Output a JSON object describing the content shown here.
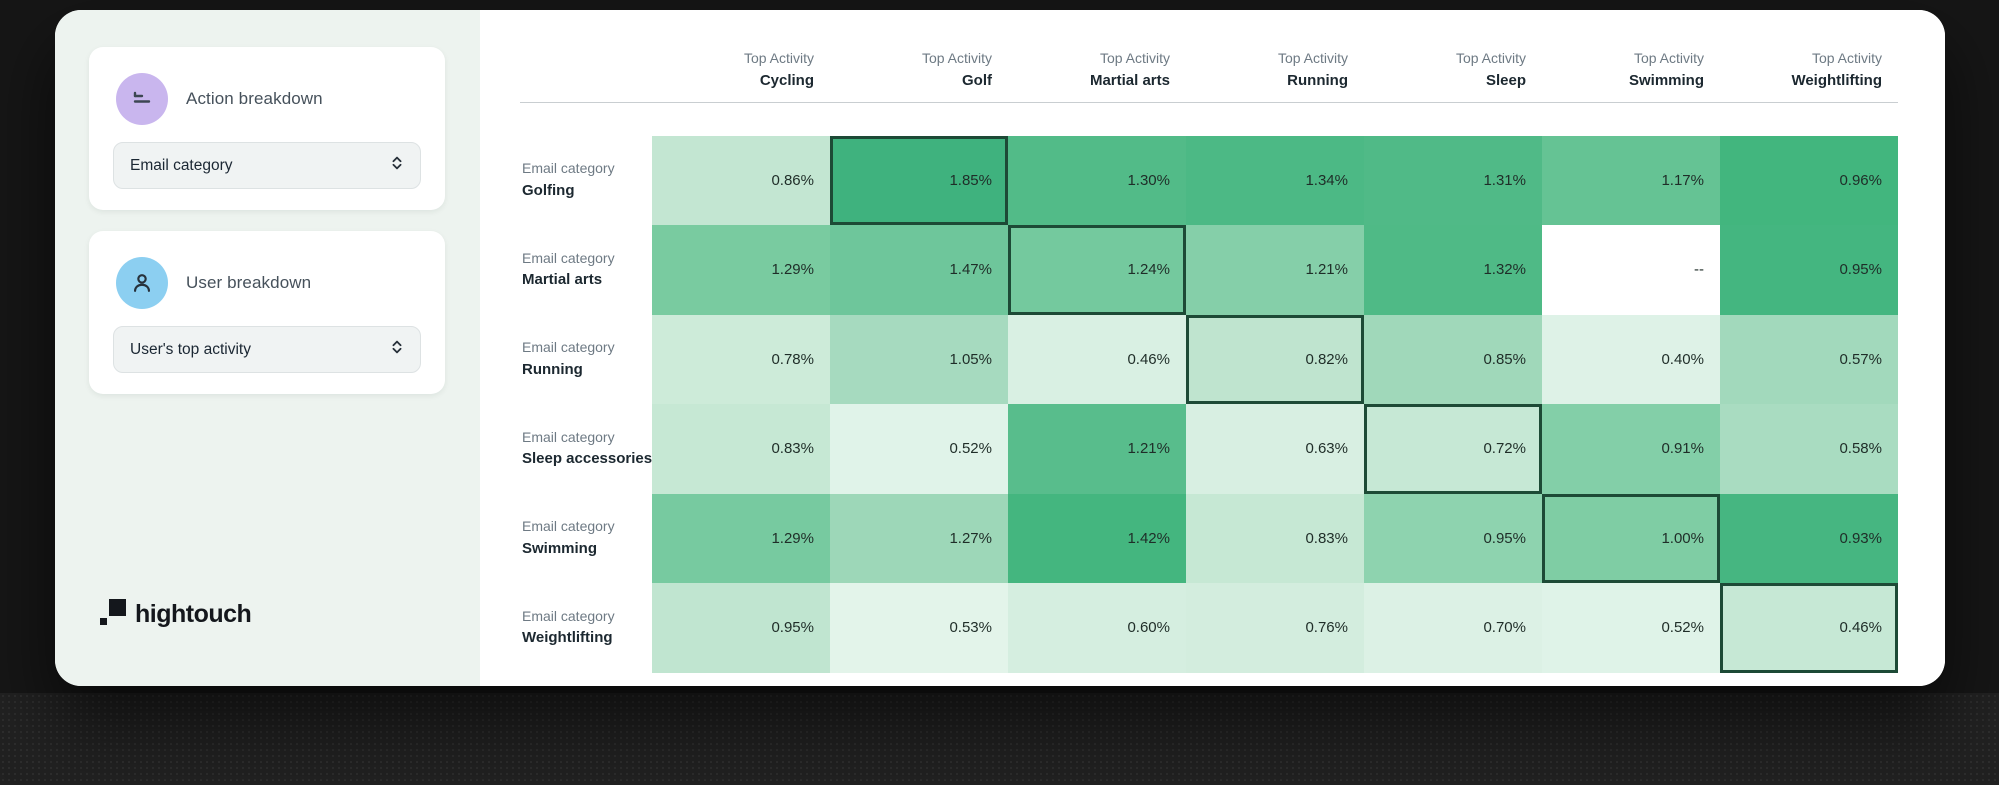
{
  "sidebar": {
    "action_card": {
      "title": "Action breakdown",
      "dropdown_value": "Email category",
      "icon": "bars-icon",
      "icon_bg": "#c9b6ee",
      "icon_stroke": "#3c4652"
    },
    "user_card": {
      "title": "User breakdown",
      "dropdown_value": "User's top activity",
      "icon": "person-icon",
      "icon_bg": "#8ccff1",
      "icon_stroke": "#27323c"
    },
    "logo_text": "hightouch",
    "logo_color": "#14171c"
  },
  "chart_data": {
    "type": "heatmap",
    "column_header_prefix": "Top Activity",
    "row_header_prefix": "Email category",
    "columns": [
      "Cycling",
      "Golf",
      "Martial arts",
      "Running",
      "Sleep",
      "Swimming",
      "Weightlifting"
    ],
    "rows": [
      "Golfing",
      "Martial arts",
      "Running",
      "Sleep accessories",
      "Swimming",
      "Weightlifting"
    ],
    "values_numeric": [
      [
        0.86,
        1.85,
        1.3,
        1.34,
        1.31,
        1.17,
        0.96
      ],
      [
        1.29,
        1.47,
        1.24,
        1.21,
        1.32,
        null,
        0.95
      ],
      [
        0.78,
        1.05,
        0.46,
        0.82,
        0.85,
        0.4,
        0.57
      ],
      [
        0.83,
        0.52,
        1.21,
        0.63,
        0.72,
        0.91,
        0.58
      ],
      [
        1.29,
        1.27,
        1.42,
        0.83,
        0.95,
        1.0,
        0.93
      ],
      [
        0.95,
        0.53,
        0.6,
        0.76,
        0.7,
        0.52,
        0.46
      ]
    ],
    "values_display": [
      [
        "0.86%",
        "1.85%",
        "1.30%",
        "1.34%",
        "1.31%",
        "1.17%",
        "0.96%"
      ],
      [
        "1.29%",
        "1.47%",
        "1.24%",
        "1.21%",
        "1.32%",
        "--",
        "0.95%"
      ],
      [
        "0.78%",
        "1.05%",
        "0.46%",
        "0.82%",
        "0.85%",
        "0.40%",
        "0.57%"
      ],
      [
        "0.83%",
        "0.52%",
        "1.21%",
        "0.63%",
        "0.72%",
        "0.91%",
        "0.58%"
      ],
      [
        "1.29%",
        "1.27%",
        "1.42%",
        "0.83%",
        "0.95%",
        "1.00%",
        "0.93%"
      ],
      [
        "0.95%",
        "0.53%",
        "0.60%",
        "0.76%",
        "0.70%",
        "0.52%",
        "0.46%"
      ]
    ],
    "cell_colors": [
      [
        "#c3e6d2",
        "#3fb27e",
        "#52bb88",
        "#4cb985",
        "#50ba87",
        "#65c394",
        "#42b67e"
      ],
      [
        "#79cba0",
        "#6ec69b",
        "#74c99e",
        "#85cfa9",
        "#4fba86",
        "#ffffff",
        "#44b680"
      ],
      [
        "#cdebd9",
        "#a6dabf",
        "#d9f0e3",
        "#bfe4cf",
        "#a0d8ba",
        "#def2e7",
        "#a2d9bc"
      ],
      [
        "#c6e8d4",
        "#e0f3e9",
        "#58bd8c",
        "#d8efe2",
        "#c6e8d5",
        "#83cfa8",
        "#a9dcc1"
      ],
      [
        "#77caa0",
        "#9dd7b8",
        "#44b67f",
        "#c6e8d4",
        "#8ed3af",
        "#7fcda4",
        "#46b681"
      ],
      [
        "#c0e5d0",
        "#e3f4ea",
        "#d5eee0",
        "#d3edde",
        "#dcf1e5",
        "#dff3e8",
        "#c6e8d5"
      ]
    ],
    "highlighted_cells": [
      [
        0,
        1
      ],
      [
        1,
        2
      ],
      [
        2,
        3
      ],
      [
        3,
        4
      ],
      [
        4,
        5
      ],
      [
        5,
        6
      ]
    ],
    "highlight_border_color": "#1d4a36",
    "missing_placeholder": "--",
    "legend": "none",
    "grid": "off"
  }
}
